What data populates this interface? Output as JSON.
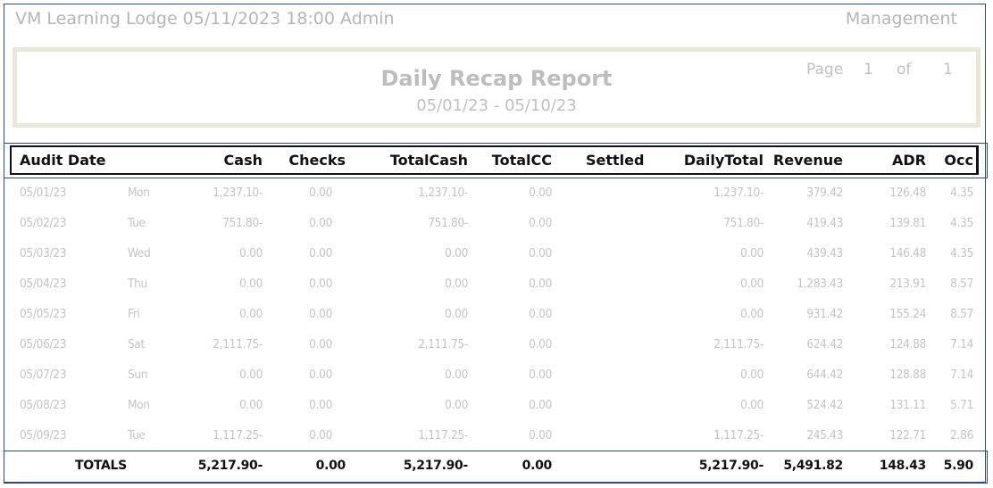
{
  "header": {
    "left": "VM Learning Lodge 05/11/2023 18:00  Admin",
    "right": "Management"
  },
  "report": {
    "title": "Daily Recap Report",
    "date_range": "05/01/23 - 05/10/23",
    "page_label": "Page",
    "page": "1",
    "of_label": "of",
    "pages": "1"
  },
  "columns": [
    "Audit Date",
    "Cash",
    "Checks",
    "TotalCash",
    "TotalCC",
    "Settled",
    "DailyTotal",
    "Revenue",
    "ADR",
    "Occ"
  ],
  "rows": [
    [
      "05/01/23",
      "Mon",
      "1,237.10-",
      "0.00",
      "1,237.10-",
      "0.00",
      "",
      "1,237.10-",
      "379.42",
      "126.48",
      "4.35"
    ],
    [
      "05/02/23",
      "Tue",
      "751.80-",
      "0.00",
      "751.80-",
      "0.00",
      "",
      "751.80-",
      "419.43",
      "139.81",
      "4.35"
    ],
    [
      "05/03/23",
      "Wed",
      "0.00",
      "0.00",
      "0.00",
      "0.00",
      "",
      "0.00",
      "439.43",
      "146.48",
      "4.35"
    ],
    [
      "05/04/23",
      "Thu",
      "0.00",
      "0.00",
      "0.00",
      "0.00",
      "",
      "0.00",
      "1,283.43",
      "213.91",
      "8.57"
    ],
    [
      "05/05/23",
      "Fri",
      "0.00",
      "0.00",
      "0.00",
      "0.00",
      "",
      "0.00",
      "931.42",
      "155.24",
      "8.57"
    ],
    [
      "05/06/23",
      "Sat",
      "2,111.75-",
      "0.00",
      "2,111.75-",
      "0.00",
      "",
      "2,111.75-",
      "624.42",
      "124.88",
      "7.14"
    ],
    [
      "05/07/23",
      "Sun",
      "0.00",
      "0.00",
      "0.00",
      "0.00",
      "",
      "0.00",
      "644.42",
      "128.88",
      "7.14"
    ],
    [
      "05/08/23",
      "Mon",
      "0.00",
      "0.00",
      "0.00",
      "0.00",
      "",
      "0.00",
      "524.42",
      "131.11",
      "5.71"
    ],
    [
      "05/09/23",
      "Tue",
      "1,117.25-",
      "0.00",
      "1,117.25-",
      "0.00",
      "",
      "1,117.25-",
      "245.43",
      "122.71",
      "2.86"
    ]
  ],
  "totals": {
    "label": "TOTALS",
    "cash": "5,217.90-",
    "checks": "0.00",
    "total_cash": "5,217.90-",
    "total_cc": "0.00",
    "daily_total": "5,217.90-",
    "revenue": "5,491.82",
    "adr": "148.43",
    "occ": "5.90"
  }
}
